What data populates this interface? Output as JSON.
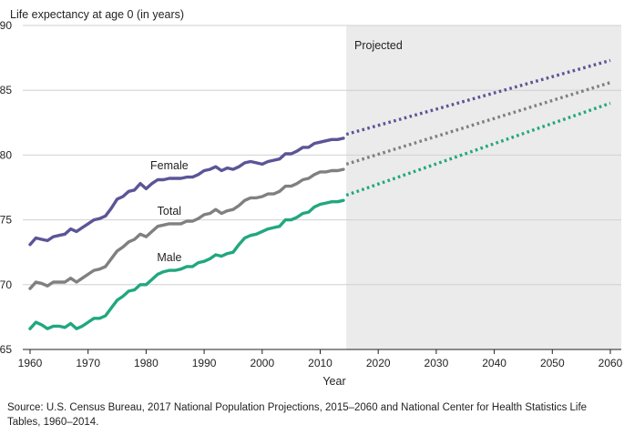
{
  "chart_data": {
    "type": "line",
    "ylabel": "Life expectancy at age 0  (in years)",
    "xlabel": "Year",
    "xlim": [
      1960,
      2060
    ],
    "ylim": [
      65,
      90
    ],
    "xticks": [
      1960,
      1970,
      1980,
      1990,
      2000,
      2010,
      2020,
      2030,
      2040,
      2050,
      2060
    ],
    "yticks": [
      65,
      70,
      75,
      80,
      85,
      90
    ],
    "grid": "horizontal",
    "projection_start": 2014.5,
    "projection_label": "Projected",
    "series": [
      {
        "name": "Female",
        "color": "#5b5597",
        "historical": {
          "x": [
            1960,
            1961,
            1962,
            1963,
            1964,
            1965,
            1966,
            1967,
            1968,
            1969,
            1970,
            1971,
            1972,
            1973,
            1974,
            1975,
            1976,
            1977,
            1978,
            1979,
            1980,
            1981,
            1982,
            1983,
            1984,
            1985,
            1986,
            1987,
            1988,
            1989,
            1990,
            1991,
            1992,
            1993,
            1994,
            1995,
            1996,
            1997,
            1998,
            1999,
            2000,
            2001,
            2002,
            2003,
            2004,
            2005,
            2006,
            2007,
            2008,
            2009,
            2010,
            2011,
            2012,
            2013,
            2014
          ],
          "y": [
            73.1,
            73.6,
            73.5,
            73.4,
            73.7,
            73.8,
            73.9,
            74.3,
            74.1,
            74.4,
            74.7,
            75.0,
            75.1,
            75.3,
            75.9,
            76.6,
            76.8,
            77.2,
            77.3,
            77.8,
            77.4,
            77.8,
            78.1,
            78.1,
            78.2,
            78.2,
            78.2,
            78.3,
            78.3,
            78.5,
            78.8,
            78.9,
            79.1,
            78.8,
            79.0,
            78.9,
            79.1,
            79.4,
            79.5,
            79.4,
            79.3,
            79.5,
            79.6,
            79.7,
            80.1,
            80.1,
            80.3,
            80.6,
            80.6,
            80.9,
            81.0,
            81.1,
            81.2,
            81.2,
            81.3
          ]
        },
        "projected": {
          "x": [
            2014.5,
            2060
          ],
          "y": [
            81.6,
            87.3
          ]
        }
      },
      {
        "name": "Total",
        "color": "#808080",
        "historical": {
          "x": [
            1960,
            1961,
            1962,
            1963,
            1964,
            1965,
            1966,
            1967,
            1968,
            1969,
            1970,
            1971,
            1972,
            1973,
            1974,
            1975,
            1976,
            1977,
            1978,
            1979,
            1980,
            1981,
            1982,
            1983,
            1984,
            1985,
            1986,
            1987,
            1988,
            1989,
            1990,
            1991,
            1992,
            1993,
            1994,
            1995,
            1996,
            1997,
            1998,
            1999,
            2000,
            2001,
            2002,
            2003,
            2004,
            2005,
            2006,
            2007,
            2008,
            2009,
            2010,
            2011,
            2012,
            2013,
            2014
          ],
          "y": [
            69.7,
            70.2,
            70.1,
            69.9,
            70.2,
            70.2,
            70.2,
            70.5,
            70.2,
            70.5,
            70.8,
            71.1,
            71.2,
            71.4,
            72.0,
            72.6,
            72.9,
            73.3,
            73.5,
            73.9,
            73.7,
            74.1,
            74.5,
            74.6,
            74.7,
            74.7,
            74.7,
            74.9,
            74.9,
            75.1,
            75.4,
            75.5,
            75.8,
            75.5,
            75.7,
            75.8,
            76.1,
            76.5,
            76.7,
            76.7,
            76.8,
            77.0,
            77.0,
            77.2,
            77.6,
            77.6,
            77.8,
            78.1,
            78.2,
            78.5,
            78.7,
            78.7,
            78.8,
            78.8,
            78.9
          ]
        },
        "projected": {
          "x": [
            2014.5,
            2060
          ],
          "y": [
            79.3,
            85.6
          ]
        }
      },
      {
        "name": "Male",
        "color": "#22a77f",
        "historical": {
          "x": [
            1960,
            1961,
            1962,
            1963,
            1964,
            1965,
            1966,
            1967,
            1968,
            1969,
            1970,
            1971,
            1972,
            1973,
            1974,
            1975,
            1976,
            1977,
            1978,
            1979,
            1980,
            1981,
            1982,
            1983,
            1984,
            1985,
            1986,
            1987,
            1988,
            1989,
            1990,
            1991,
            1992,
            1993,
            1994,
            1995,
            1996,
            1997,
            1998,
            1999,
            2000,
            2001,
            2002,
            2003,
            2004,
            2005,
            2006,
            2007,
            2008,
            2009,
            2010,
            2011,
            2012,
            2013,
            2014
          ],
          "y": [
            66.6,
            67.1,
            66.9,
            66.6,
            66.8,
            66.8,
            66.7,
            67.0,
            66.6,
            66.8,
            67.1,
            67.4,
            67.4,
            67.6,
            68.2,
            68.8,
            69.1,
            69.5,
            69.6,
            70.0,
            70.0,
            70.4,
            70.8,
            71.0,
            71.1,
            71.1,
            71.2,
            71.4,
            71.4,
            71.7,
            71.8,
            72.0,
            72.3,
            72.2,
            72.4,
            72.5,
            73.1,
            73.6,
            73.8,
            73.9,
            74.1,
            74.3,
            74.4,
            74.5,
            75.0,
            75.0,
            75.2,
            75.5,
            75.6,
            76.0,
            76.2,
            76.3,
            76.4,
            76.4,
            76.5
          ]
        },
        "projected": {
          "x": [
            2014.5,
            2060
          ],
          "y": [
            76.9,
            84.0
          ]
        }
      }
    ],
    "source": "Source: U.S. Census Bureau, 2017 National Population Projections, 2015–2060 and National Center for Health Statistics Life Tables, 1960–2014."
  }
}
